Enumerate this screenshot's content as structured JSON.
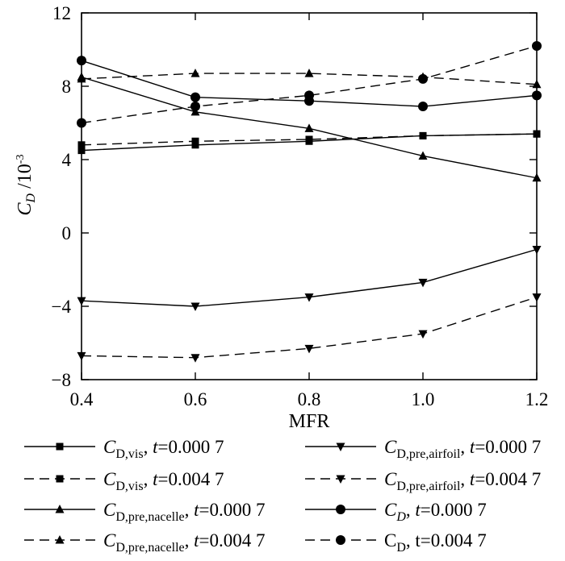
{
  "chart_data": {
    "type": "line",
    "title": "",
    "xlabel": "MFR",
    "ylabel": {
      "main": "C",
      "sub": "D",
      "unit": " /10",
      "exp": "-3"
    },
    "xlim": [
      0.4,
      1.2
    ],
    "ylim": [
      -8,
      12
    ],
    "xticks": [
      0.4,
      0.6,
      0.8,
      1.0,
      1.2
    ],
    "xtick_labels": [
      "0.4",
      "0.6",
      "0.8",
      "1.0",
      "1.2"
    ],
    "yticks": [
      -8,
      -4,
      0,
      4,
      8,
      12
    ],
    "ytick_labels": [
      "−8",
      "−4",
      "0",
      "4",
      "8",
      "12"
    ],
    "x": [
      0.4,
      0.6,
      0.8,
      1.0,
      1.2
    ],
    "series": [
      {
        "name": "C_D,vis, t=0.000 7",
        "marker": "square",
        "dash": "solid",
        "values": [
          4.5,
          4.8,
          5.0,
          5.3,
          5.4
        ],
        "legend": {
          "sym": "C",
          "sub": "D,vis",
          "t": "t",
          "rest": "=0.000 7"
        }
      },
      {
        "name": "C_D,vis, t=0.004 7",
        "marker": "square",
        "dash": "dashed",
        "values": [
          4.8,
          5.0,
          5.1,
          5.3,
          5.4
        ],
        "legend": {
          "sym": "C",
          "sub": "D,vis",
          "t": "t",
          "rest": "=0.004 7"
        }
      },
      {
        "name": "C_D,pre,nacelle, t=0.000 7",
        "marker": "triangle-up",
        "dash": "solid",
        "values": [
          8.5,
          6.6,
          5.7,
          4.2,
          3.0
        ],
        "legend": {
          "sym": "C",
          "sub": "D,pre,nacelle",
          "t": "t",
          "rest": "=0.000 7"
        }
      },
      {
        "name": "C_D,pre,nacelle, t=0.004 7",
        "marker": "triangle-up",
        "dash": "dashed",
        "values": [
          8.4,
          8.7,
          8.7,
          8.5,
          8.1
        ],
        "legend": {
          "sym": "C",
          "sub": "D,pre,nacelle",
          "t": "t",
          "rest": "=0.004 7"
        }
      },
      {
        "name": "C_D,pre,airfoil, t=0.000 7",
        "marker": "triangle-down",
        "dash": "solid",
        "values": [
          -3.7,
          -4.0,
          -3.5,
          -2.7,
          -0.9
        ],
        "legend": {
          "sym": "C",
          "sub": "D,pre,airfoil",
          "t": "t",
          "rest": "=0.000 7"
        }
      },
      {
        "name": "C_D,pre,airfoil, t=0.004 7",
        "marker": "triangle-down",
        "dash": "dashed",
        "values": [
          -6.7,
          -6.8,
          -6.3,
          -5.5,
          -3.5
        ],
        "legend": {
          "sym": "C",
          "sub": "D,pre,airfoil",
          "t": "t",
          "rest": "=0.004 7"
        }
      },
      {
        "name": "C_D, t=0.000 7",
        "marker": "circle",
        "dash": "solid",
        "values": [
          9.4,
          7.4,
          7.2,
          6.9,
          7.5
        ],
        "legend": {
          "sym": "C",
          "sub": "D",
          "t": "t",
          "rest": "=0.000 7"
        }
      },
      {
        "name": "C_D, t=0.004 7",
        "marker": "circle",
        "dash": "dashed",
        "values": [
          6.0,
          6.9,
          7.5,
          8.4,
          10.2
        ],
        "legend": {
          "sym": "C",
          "sub": "D",
          "t": "",
          "rest": ", t=0.004 7",
          "upright": true
        }
      }
    ],
    "legend_layout": [
      [
        0,
        4
      ],
      [
        1,
        5
      ],
      [
        2,
        6
      ],
      [
        3,
        7
      ]
    ],
    "grid": false,
    "legend_position": "below"
  }
}
